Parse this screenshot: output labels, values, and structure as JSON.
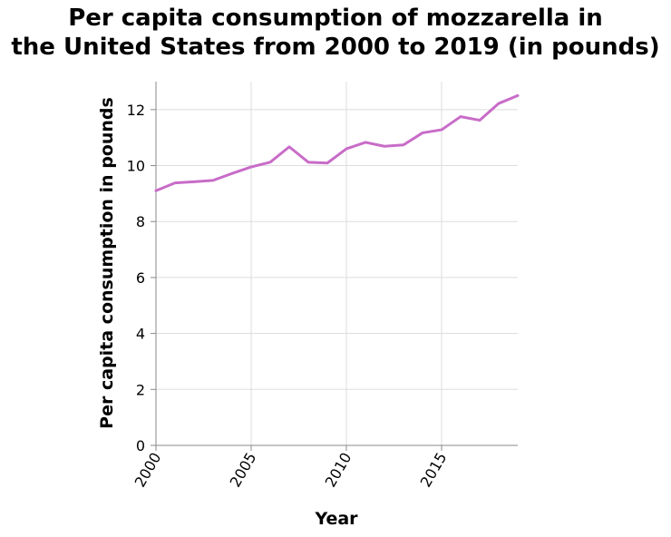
{
  "chart_data": {
    "type": "line",
    "title": [
      "Per capita consumption of mozzarella in",
      "the United States from 2000 to 2019 (in pounds)"
    ],
    "xlabel": "Year",
    "ylabel": "Per capita consumption in pounds",
    "xlim": [
      2000,
      2019
    ],
    "ylim": [
      0,
      13
    ],
    "x_ticks": [
      2000,
      2005,
      2010,
      2015
    ],
    "y_ticks": [
      0,
      2,
      4,
      6,
      8,
      10,
      12
    ],
    "grid": true,
    "series": [
      {
        "color": "#c86cc8",
        "x": [
          2000,
          2001,
          2002,
          2003,
          2004,
          2005,
          2006,
          2007,
          2008,
          2009,
          2010,
          2011,
          2012,
          2013,
          2014,
          2015,
          2016,
          2017,
          2018,
          2019
        ],
        "values": [
          9.1,
          9.38,
          9.42,
          9.47,
          9.72,
          9.95,
          10.12,
          10.67,
          10.12,
          10.09,
          10.6,
          10.83,
          10.69,
          10.74,
          11.17,
          11.28,
          11.75,
          11.62,
          12.22,
          12.5
        ]
      }
    ]
  }
}
